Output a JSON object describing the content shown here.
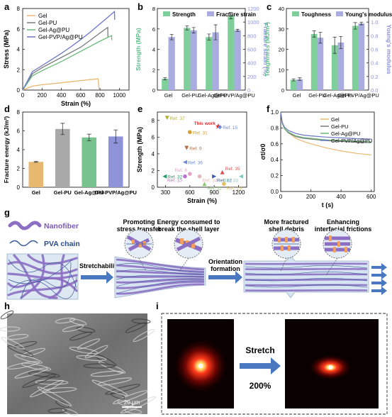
{
  "panel_letters": {
    "a": "a",
    "b": "b",
    "c": "c",
    "d": "d",
    "e": "e",
    "f": "f",
    "g": "g",
    "h": "h",
    "i": "i"
  },
  "colors": {
    "gel": "#e8b870",
    "gel_pu": "#7a7a7a",
    "gel_ag_pu": "#6ab87a",
    "gel_pvp_ag_pu": "#6a76c8",
    "bar_green": "#7fcf9b",
    "bar_blue": "#a8acdf",
    "bar_gel": "#e8b870",
    "bar_gray": "#a9a9a9",
    "bar_green_d": "#78c28e",
    "bar_blue_d": "#8e92d6",
    "axis_green": "#5fbf8a",
    "axis_blue": "#8e92d6",
    "fiber": "#8c6fc3",
    "pva": "#3a5a9a",
    "arrow": "#4a78c0",
    "ring_fill": "#c8d8ee"
  },
  "chart_data": [
    {
      "id": "a",
      "type": "line",
      "xlabel": "Strain (%)",
      "ylabel": "Stress (MPa)",
      "xlim": [
        0,
        1100
      ],
      "ylim": [
        0,
        8
      ],
      "xticks": [
        0,
        200,
        400,
        600,
        800,
        1000
      ],
      "yticks": [
        0,
        2,
        4,
        6,
        8
      ],
      "legend_position": "top-left",
      "series": [
        {
          "name": "Gel",
          "color_key": "gel",
          "points": [
            [
              0,
              0
            ],
            [
              100,
              0.38
            ],
            [
              200,
              0.52
            ],
            [
              300,
              0.62
            ],
            [
              400,
              0.72
            ],
            [
              500,
              0.82
            ],
            [
              600,
              0.93
            ],
            [
              700,
              1.03
            ],
            [
              780,
              1.1
            ],
            [
              790,
              0.1
            ]
          ]
        },
        {
          "name": "Gel-PU",
          "color_key": "gel_pu",
          "points": [
            [
              0,
              0
            ],
            [
              100,
              1.6
            ],
            [
              200,
              2.2
            ],
            [
              300,
              2.7
            ],
            [
              400,
              3.2
            ],
            [
              500,
              3.7
            ],
            [
              600,
              4.2
            ],
            [
              700,
              4.9
            ],
            [
              800,
              5.6
            ],
            [
              880,
              6.15
            ],
            [
              882,
              5.2
            ]
          ]
        },
        {
          "name": "Gel-Ag@PU",
          "color_key": "gel_ag_pu",
          "points": [
            [
              0,
              0
            ],
            [
              100,
              1.4
            ],
            [
              200,
              1.9
            ],
            [
              300,
              2.35
            ],
            [
              400,
              2.8
            ],
            [
              500,
              3.3
            ],
            [
              600,
              3.8
            ],
            [
              700,
              4.3
            ],
            [
              800,
              4.8
            ],
            [
              920,
              5.35
            ],
            [
              922,
              4.9
            ]
          ]
        },
        {
          "name": "Gel-PVP/Ag@PU",
          "color_key": "gel_pvp_ag_pu",
          "points": [
            [
              0,
              0
            ],
            [
              100,
              1.8
            ],
            [
              200,
              2.4
            ],
            [
              300,
              3.0
            ],
            [
              400,
              3.6
            ],
            [
              500,
              4.25
            ],
            [
              600,
              4.95
            ],
            [
              700,
              5.7
            ],
            [
              800,
              6.5
            ],
            [
              900,
              7.3
            ],
            [
              950,
              7.7
            ],
            [
              952,
              6.9
            ]
          ]
        }
      ]
    },
    {
      "id": "b",
      "type": "bar",
      "categories": [
        "Gel",
        "Gel-PU",
        "Gel-Ag@PU",
        "Gel-PVP/Ag@PU"
      ],
      "ylabel": "Strength (MPa)",
      "y2label": "Fracture strain (%)",
      "ylim": [
        0,
        8
      ],
      "y2lim": [
        0,
        1200
      ],
      "yticks": [
        0,
        2,
        4,
        6,
        8
      ],
      "y2ticks": [
        0,
        200,
        400,
        600,
        800,
        1000,
        1200
      ],
      "legend_position": "top",
      "series": [
        {
          "name": "Strength",
          "axis": "left",
          "color_key": "bar_green",
          "values": [
            1.1,
            6.1,
            5.2,
            7.3
          ],
          "errors": [
            0.1,
            0.2,
            0.3,
            0.3
          ]
        },
        {
          "name": "Fracture strain",
          "axis": "right",
          "color_key": "bar_blue",
          "values": [
            780,
            880,
            850,
            880
          ],
          "errors": [
            40,
            40,
            110,
            15
          ]
        }
      ]
    },
    {
      "id": "c",
      "type": "bar",
      "categories": [
        "Gel",
        "Gel-PU",
        "Gel-Ag@PU",
        "Gel-PVP/Ag@PU"
      ],
      "ylabel": "Toughness (MJ/m³)",
      "y2label": "Young's modulus",
      "ylim": [
        0,
        40
      ],
      "y2lim": [
        0,
        1.2
      ],
      "yticks": [
        0,
        10,
        20,
        30,
        40
      ],
      "y2ticks": [
        0.0,
        0.2,
        0.4,
        0.6,
        0.8,
        1.0
      ],
      "legend_position": "top",
      "series": [
        {
          "name": "Toughness",
          "axis": "left",
          "color_key": "bar_green",
          "values": [
            5,
            27.5,
            22,
            31.5
          ],
          "errors": [
            0.5,
            1.5,
            4,
            1.6
          ]
        },
        {
          "name": "Young's modulus",
          "axis": "right",
          "color_key": "bar_blue",
          "values": [
            0.16,
            0.77,
            0.7,
            0.98
          ],
          "errors": [
            0.02,
            0.08,
            0.09,
            0.02
          ]
        }
      ]
    },
    {
      "id": "d",
      "type": "bar",
      "categories": [
        "Gel",
        "Gel-PU",
        "Gel-Ag@PU",
        "Gel-PVP/Ag@PU"
      ],
      "ylabel": "Fracture energy (kJ/m²)",
      "ylim": [
        0,
        8
      ],
      "yticks": [
        0,
        2,
        4,
        6,
        8
      ],
      "series": [
        {
          "values": [
            2.7,
            6.2,
            5.3,
            5.4
          ],
          "errors": [
            0.05,
            0.6,
            0.35,
            0.7
          ],
          "color_keys": [
            "bar_gel",
            "bar_gray",
            "bar_green_d",
            "bar_blue_d"
          ]
        }
      ]
    },
    {
      "id": "e",
      "type": "scatter",
      "xlabel": "Strain (%)",
      "ylabel": "Strength (MPa)",
      "xlim": [
        200,
        1300
      ],
      "ylim": [
        0,
        9
      ],
      "xticks": [
        300,
        600,
        900,
        1200
      ],
      "yticks": [
        0,
        2,
        4,
        6,
        8
      ],
      "points": [
        {
          "label": "Ref. 37",
          "x": 320,
          "y": 8.3,
          "color": "#b3b338",
          "marker": "tri-down"
        },
        {
          "label": "This work",
          "x": 950,
          "y": 7.3,
          "color": "#e03030",
          "marker": "star"
        },
        {
          "label": "Ref. 15",
          "x": 970,
          "y": 7.2,
          "color": "#6a8ad8",
          "marker": "diamond"
        },
        {
          "label": "Ref. 31",
          "x": 600,
          "y": 6.6,
          "color": "#d4a030",
          "marker": "circle"
        },
        {
          "label": "Ref. 9",
          "x": 560,
          "y": 4.7,
          "color": "#b0704a",
          "marker": "tri-down"
        },
        {
          "label": "Ref. 36",
          "x": 540,
          "y": 3.0,
          "color": "#6a8ad8",
          "marker": "tri-left"
        },
        {
          "label": "Ref. 35",
          "x": 1000,
          "y": 1.8,
          "color": "#e05050",
          "marker": "tri-up"
        },
        {
          "label": "Ref. 8",
          "x": 600,
          "y": 1.6,
          "color": "#e8a0c8",
          "marker": "circle"
        },
        {
          "label": "Ref. 10",
          "x": 540,
          "y": 1.3,
          "color": "#c070d0",
          "marker": "circle"
        },
        {
          "label": "Ref. 34",
          "x": 720,
          "y": 1.3,
          "color": "#e8b8b8",
          "marker": "circle"
        },
        {
          "label": "Ref. 12",
          "x": 900,
          "y": 1.3,
          "color": "#3a5ab8",
          "marker": "tri-right"
        },
        {
          "label": "Ref. 33",
          "x": 1230,
          "y": 1.3,
          "color": "#80c8c0",
          "marker": "tri-left"
        },
        {
          "label": "Ref. 32",
          "x": 290,
          "y": 1.3,
          "color": "#2a9a6a",
          "marker": "tri-left"
        },
        {
          "label": "Ref. 11",
          "x": 780,
          "y": 0.4,
          "color": "#8ac870",
          "marker": "tri-up"
        },
        {
          "label": "Ref. 19",
          "x": 1020,
          "y": 0.4,
          "color": "#e8c060",
          "marker": "circle"
        }
      ]
    },
    {
      "id": "f",
      "type": "line",
      "xlabel": "t (s)",
      "ylabel": "σt/σ0",
      "xlim": [
        0,
        620
      ],
      "ylim": [
        0,
        1
      ],
      "xticks": [
        0,
        200,
        400,
        600
      ],
      "yticks": [
        0.0,
        0.2,
        0.4,
        0.6,
        0.8,
        1.0
      ],
      "legend_position": "top-right",
      "series": [
        {
          "name": "Gel",
          "color_key": "gel",
          "points": [
            [
              0,
              1
            ],
            [
              10,
              0.88
            ],
            [
              25,
              0.8
            ],
            [
              50,
              0.74
            ],
            [
              100,
              0.67
            ],
            [
              150,
              0.63
            ],
            [
              200,
              0.6
            ],
            [
              300,
              0.55
            ],
            [
              400,
              0.51
            ],
            [
              500,
              0.48
            ],
            [
              600,
              0.46
            ]
          ]
        },
        {
          "name": "Gel-PU",
          "color_key": "gel_pu",
          "points": [
            [
              0,
              1
            ],
            [
              10,
              0.86
            ],
            [
              25,
              0.79
            ],
            [
              50,
              0.74
            ],
            [
              100,
              0.69
            ],
            [
              150,
              0.67
            ],
            [
              200,
              0.66
            ],
            [
              300,
              0.64
            ],
            [
              400,
              0.63
            ],
            [
              500,
              0.62
            ],
            [
              600,
              0.615
            ]
          ]
        },
        {
          "name": "Gel-Ag@PU",
          "color_key": "gel_ag_pu",
          "points": [
            [
              0,
              1
            ],
            [
              10,
              0.86
            ],
            [
              25,
              0.79
            ],
            [
              50,
              0.75
            ],
            [
              100,
              0.7
            ],
            [
              150,
              0.68
            ],
            [
              200,
              0.67
            ],
            [
              300,
              0.65
            ],
            [
              400,
              0.64
            ],
            [
              500,
              0.63
            ],
            [
              600,
              0.625
            ]
          ]
        },
        {
          "name": "Gel-PVP/Ag@PU",
          "color_key": "gel_pvp_ag_pu",
          "points": [
            [
              0,
              1
            ],
            [
              10,
              0.87
            ],
            [
              25,
              0.81
            ],
            [
              50,
              0.77
            ],
            [
              100,
              0.73
            ],
            [
              150,
              0.71
            ],
            [
              200,
              0.7
            ],
            [
              300,
              0.685
            ],
            [
              400,
              0.675
            ],
            [
              500,
              0.665
            ],
            [
              600,
              0.66
            ]
          ]
        }
      ]
    }
  ],
  "diagram_g": {
    "legend_nanofiber": "Nanofiber",
    "legend_pva": "PVA chain",
    "callout_1": "Promoting stress transfer",
    "callout_2": "Energy consumed to break the shell layer",
    "callout_3": "More fractured shell debris",
    "callout_4": "Enhancing interfacial frictions",
    "arrow_1": "Stretchability",
    "arrow_2": "Orientation formation"
  },
  "panel_h": {
    "scale_bar": "20 μm"
  },
  "panel_i": {
    "arrow_top": "Stretch",
    "arrow_bottom": "200%"
  }
}
